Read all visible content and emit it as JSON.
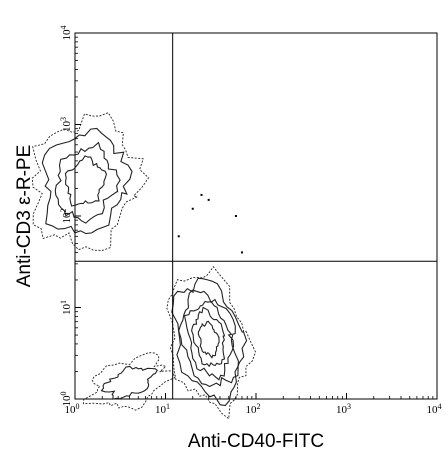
{
  "chart_data": {
    "type": "scatter",
    "subtype": "flow-cytometry contour plot",
    "xlabel": "Anti-CD40-FITC",
    "ylabel": "Anti-CD3 ε-R-PE",
    "x_scale": "log",
    "y_scale": "log",
    "xlim": [
      1,
      10000
    ],
    "ylim": [
      1,
      10000
    ],
    "x_ticks": [
      {
        "base": "10",
        "exp": "0"
      },
      {
        "base": "10",
        "exp": "1"
      },
      {
        "base": "10",
        "exp": "2"
      },
      {
        "base": "10",
        "exp": "3"
      },
      {
        "base": "10",
        "exp": "4"
      }
    ],
    "y_ticks": [
      {
        "base": "10",
        "exp": "0"
      },
      {
        "base": "10",
        "exp": "1"
      },
      {
        "base": "10",
        "exp": "2"
      },
      {
        "base": "10",
        "exp": "3"
      },
      {
        "base": "10",
        "exp": "4"
      }
    ],
    "quadrant_gates": {
      "x": 12,
      "y": 32
    },
    "grid": false,
    "legend": "none",
    "populations": [
      {
        "center": [
          1.3,
          230
        ],
        "levels": 4
      },
      {
        "center": [
          30,
          4.5
        ],
        "levels": 6
      },
      {
        "center": [
          4,
          1.5
        ],
        "levels": 2
      }
    ],
    "scatter_points": [
      [
        30,
        150
      ],
      [
        25,
        170
      ],
      [
        60,
        100
      ],
      [
        20,
        120
      ],
      [
        14,
        60
      ],
      [
        70,
        40
      ]
    ]
  }
}
